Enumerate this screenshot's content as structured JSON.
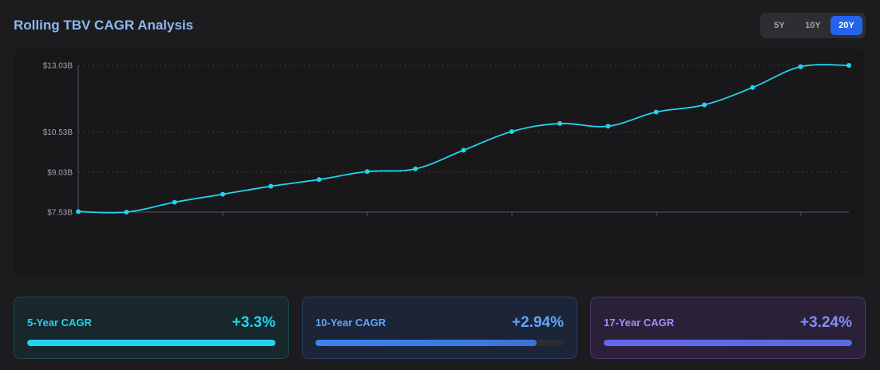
{
  "header": {
    "title": "Rolling TBV CAGR Analysis",
    "range_options": [
      "5Y",
      "10Y",
      "20Y"
    ],
    "active_range": "20Y"
  },
  "colors": {
    "line": "#22d3ee",
    "grid": "#3a3a40",
    "axis": "#52525b"
  },
  "chart_data": {
    "type": "line",
    "title": "",
    "xlabel": "",
    "ylabel": "",
    "yticks": [
      "$7.53B",
      "$9.03B",
      "$10.53B",
      "$13.03B"
    ],
    "ytick_values": [
      7.53,
      9.03,
      10.53,
      13.03
    ],
    "ylim": [
      7.53,
      13.03
    ],
    "grid": "horizontal-dotted",
    "legend": "none",
    "series": [
      {
        "values": [
          7.55,
          7.53,
          7.9,
          8.2,
          8.5,
          8.75,
          9.05,
          9.15,
          9.85,
          10.55,
          10.85,
          10.75,
          11.28,
          11.55,
          12.2,
          12.98,
          13.03
        ]
      }
    ]
  },
  "stats": [
    {
      "label": "5-Year CAGR",
      "value": "+3.3%",
      "fill": 1.0
    },
    {
      "label": "10-Year CAGR",
      "value": "+2.94%",
      "fill": 0.89
    },
    {
      "label": "17-Year CAGR",
      "value": "+3.24%",
      "fill": 1.0
    }
  ]
}
